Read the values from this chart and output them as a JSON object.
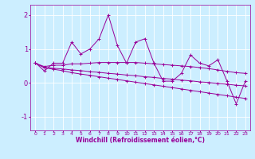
{
  "xlabel": "Windchill (Refroidissement éolien,°C)",
  "background_color": "#cceeff",
  "line_color": "#990099",
  "x_ticks": [
    0,
    1,
    2,
    3,
    4,
    5,
    6,
    7,
    8,
    9,
    10,
    11,
    12,
    13,
    14,
    15,
    16,
    17,
    18,
    19,
    20,
    21,
    22,
    23
  ],
  "ylim": [
    -1.4,
    2.3
  ],
  "yticks": [
    -1,
    0,
    1,
    2
  ],
  "main_y": [
    0.6,
    0.35,
    0.58,
    0.58,
    1.2,
    0.85,
    1.0,
    1.3,
    2.0,
    1.1,
    0.58,
    1.2,
    1.3,
    0.58,
    0.05,
    0.05,
    0.28,
    0.82,
    0.58,
    0.5,
    0.68,
    0.05,
    -0.62,
    0.05
  ],
  "line2_y": [
    0.58,
    0.48,
    0.52,
    0.52,
    0.56,
    0.56,
    0.58,
    0.6,
    0.6,
    0.6,
    0.6,
    0.6,
    0.58,
    0.56,
    0.54,
    0.52,
    0.5,
    0.48,
    0.45,
    0.42,
    0.38,
    0.34,
    0.3,
    0.28
  ],
  "line3_y": [
    0.58,
    0.45,
    0.4,
    0.36,
    0.3,
    0.26,
    0.22,
    0.18,
    0.14,
    0.1,
    0.06,
    0.02,
    -0.02,
    -0.06,
    -0.1,
    -0.14,
    -0.18,
    -0.22,
    -0.26,
    -0.3,
    -0.34,
    -0.38,
    -0.42,
    -0.46
  ],
  "line4_y": [
    0.58,
    0.45,
    0.43,
    0.41,
    0.38,
    0.36,
    0.33,
    0.31,
    0.28,
    0.26,
    0.23,
    0.21,
    0.18,
    0.16,
    0.13,
    0.11,
    0.08,
    0.06,
    0.03,
    0.01,
    -0.02,
    -0.04,
    -0.07,
    -0.09
  ],
  "figwidth": 3.2,
  "figheight": 2.0,
  "dpi": 100
}
